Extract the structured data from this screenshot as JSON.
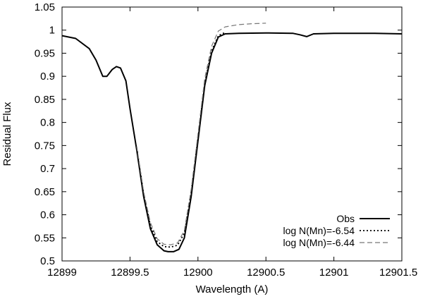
{
  "chart_data": {
    "type": "line",
    "title": "",
    "xlabel": "Wavelength (A)",
    "ylabel": "Residual Flux",
    "xlim": [
      12899,
      12901.5
    ],
    "ylim": [
      0.5,
      1.05
    ],
    "xticks": [
      12899,
      12899.5,
      12900,
      12900.5,
      12901,
      12901.5
    ],
    "xtick_labels": [
      "12899",
      "12899.5",
      "12900",
      "12900.5",
      "12901",
      "12901.5"
    ],
    "yticks": [
      0.5,
      0.55,
      0.6,
      0.65,
      0.7,
      0.75,
      0.8,
      0.85,
      0.9,
      0.95,
      1,
      1.05
    ],
    "ytick_labels": [
      "0.5",
      "0.55",
      "0.6",
      "0.65",
      "0.7",
      "0.75",
      "0.8",
      "0.85",
      "0.9",
      "0.95",
      "1",
      "1.05"
    ],
    "grid": false,
    "legend_position": "bottom-right",
    "series": [
      {
        "name": "Obs",
        "style": "solid",
        "color": "#000000",
        "x": [
          12899.0,
          12899.1,
          12899.2,
          12899.25,
          12899.3,
          12899.33,
          12899.37,
          12899.4,
          12899.43,
          12899.47,
          12899.5,
          12899.55,
          12899.6,
          12899.65,
          12899.7,
          12899.75,
          12899.78,
          12899.82,
          12899.86,
          12899.9,
          12899.95,
          12900.0,
          12900.05,
          12900.1,
          12900.15,
          12900.2,
          12900.3,
          12900.5,
          12900.7,
          12900.75,
          12900.8,
          12900.85,
          12901.0,
          12901.3,
          12901.5
        ],
        "y": [
          0.988,
          0.982,
          0.96,
          0.935,
          0.9,
          0.9,
          0.915,
          0.921,
          0.918,
          0.89,
          0.83,
          0.74,
          0.64,
          0.57,
          0.535,
          0.522,
          0.52,
          0.52,
          0.525,
          0.55,
          0.64,
          0.76,
          0.88,
          0.95,
          0.985,
          0.992,
          0.993,
          0.994,
          0.993,
          0.99,
          0.986,
          0.992,
          0.993,
          0.993,
          0.992
        ]
      },
      {
        "name": "log N(Mn)=-6.54",
        "style": "dotted",
        "color": "#000000",
        "x": [
          12899.55,
          12899.6,
          12899.65,
          12899.7,
          12899.75,
          12899.8,
          12899.85,
          12899.9,
          12899.95,
          12900.0,
          12900.05,
          12900.1,
          12900.15,
          12900.2
        ],
        "y": [
          0.745,
          0.645,
          0.577,
          0.542,
          0.531,
          0.53,
          0.534,
          0.56,
          0.648,
          0.766,
          0.885,
          0.955,
          0.988,
          0.995
        ]
      },
      {
        "name": "log N(Mn)=-6.44",
        "style": "dashed",
        "color": "#777777",
        "x": [
          12899.55,
          12899.6,
          12899.65,
          12899.7,
          12899.75,
          12899.8,
          12899.85,
          12899.9,
          12899.95,
          12900.0,
          12900.05,
          12900.1,
          12900.15,
          12900.2,
          12900.3,
          12900.4,
          12900.5
        ],
        "y": [
          0.748,
          0.65,
          0.583,
          0.548,
          0.536,
          0.535,
          0.539,
          0.566,
          0.655,
          0.775,
          0.895,
          0.965,
          0.998,
          1.007,
          1.012,
          1.014,
          1.015
        ]
      }
    ]
  }
}
